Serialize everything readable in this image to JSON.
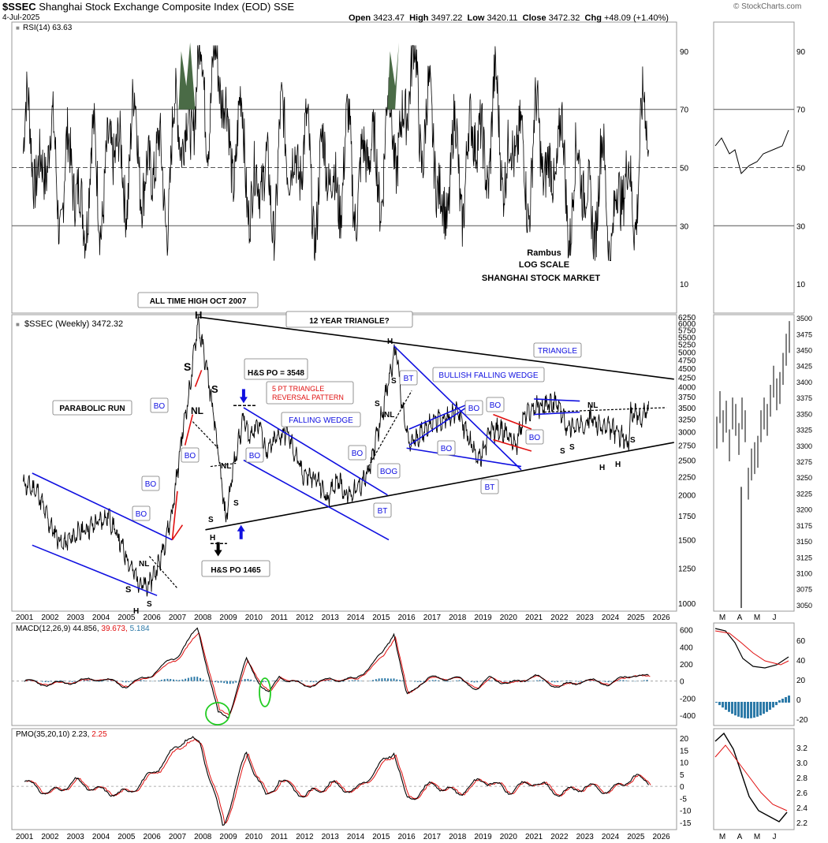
{
  "header": {
    "symbol": "$SSEC",
    "name": "Shanghai Stock Exchange Composite Index (EOD)",
    "exchange": "SSE",
    "date": "4-Jul-2025",
    "open_label": "Open",
    "open": "3423.47",
    "high_label": "High",
    "high": "3497.22",
    "low_label": "Low",
    "low": "3420.11",
    "close_label": "Close",
    "close": "3472.32",
    "chg_label": "Chg",
    "chg": "+48.09 (+1.40%)",
    "watermark": "© StockCharts.com"
  },
  "colors": {
    "price": "#000000",
    "trend": "#1010e0",
    "red": "#e01010",
    "macd_signal": "#e01010",
    "hist": "#2d7aa8",
    "ma": "#000000",
    "rsi_fill": "#4a6b46",
    "green": "#22cc22"
  },
  "chart_data": [
    {
      "type": "line",
      "panel": "rsi",
      "title": "RSI(14) 63.63",
      "y_ticks": [
        "90",
        "70",
        "50",
        "30",
        "10"
      ],
      "reference_lines": [
        70,
        50,
        30
      ],
      "ylim": [
        0,
        100
      ],
      "current": 63.63,
      "x": [
        "2001",
        "2002",
        "2003",
        "2004",
        "2005",
        "2006",
        "2007",
        "2008",
        "2009",
        "2010",
        "2011",
        "2012",
        "2013",
        "2014",
        "2015",
        "2016",
        "2017",
        "2018",
        "2019",
        "2020",
        "2021",
        "2022",
        "2023",
        "2024",
        "2025"
      ],
      "values": [
        55,
        48,
        40,
        52,
        55,
        45,
        68,
        82,
        55,
        40,
        58,
        45,
        48,
        50,
        58,
        80,
        40,
        55,
        62,
        52,
        55,
        45,
        40,
        36,
        57
      ]
    },
    {
      "type": "line",
      "panel": "price",
      "title": "$SSEC (Weekly) 3472.32",
      "scale": "log",
      "y_ticks": [
        "6250",
        "6000",
        "5750",
        "5500",
        "5250",
        "5000",
        "4750",
        "4500",
        "4250",
        "4000",
        "3750",
        "3500",
        "3250",
        "3000",
        "2750",
        "2500",
        "2250",
        "2000",
        "1750",
        "1500",
        "1250",
        "1000"
      ],
      "x_ticks": [
        "2001",
        "2002",
        "2003",
        "2004",
        "2005",
        "2006",
        "2007",
        "2008",
        "2009",
        "2010",
        "2011",
        "2012",
        "2013",
        "2014",
        "2015",
        "2016",
        "2017",
        "2018",
        "2019",
        "2020",
        "2021",
        "2022",
        "2023",
        "2024",
        "2025",
        "2026"
      ],
      "series": [
        {
          "x": [
            2000.95,
            2001.5,
            2002.0,
            2002.5,
            2003.0,
            2003.7,
            2004.3,
            2004.8,
            2005.2,
            2005.5,
            2005.8,
            2006.3,
            2006.8,
            2007.2,
            2007.5,
            2007.8,
            2008.2,
            2008.5,
            2008.9,
            2009.2,
            2009.6,
            2009.8,
            2010.2,
            2010.5,
            2010.9,
            2011.3,
            2011.9,
            2012.5,
            2012.9,
            2013.3,
            2013.6,
            2014.0,
            2014.5,
            2015.0,
            2015.4,
            2015.6,
            2015.8,
            2016.1,
            2016.5,
            2017.0,
            2017.5,
            2018.0,
            2018.5,
            2018.9,
            2019.3,
            2019.9,
            2020.3,
            2020.6,
            2021.0,
            2021.5,
            2021.9,
            2022.3,
            2022.8,
            2023.2,
            2023.6,
            2024.1,
            2024.5,
            2024.7,
            2024.8,
            2025.0,
            2025.2,
            2025.5
          ],
          "values": [
            2150,
            2050,
            1650,
            1450,
            1550,
            1650,
            1750,
            1450,
            1250,
            1150,
            1100,
            1300,
            1800,
            3000,
            4000,
            6100,
            4300,
            3000,
            1700,
            2400,
            3300,
            2900,
            3200,
            2600,
            2900,
            3000,
            2300,
            2200,
            1950,
            2250,
            2000,
            2050,
            2300,
            3300,
            4500,
            5150,
            3600,
            2750,
            2950,
            3200,
            3250,
            3450,
            2800,
            2500,
            3050,
            3000,
            2750,
            3300,
            3500,
            3550,
            3600,
            3100,
            3100,
            3300,
            3100,
            3050,
            2900,
            2750,
            3400,
            3350,
            3250,
            3472
          ]
        }
      ],
      "annotations": [
        "ALL TIME HIGH OCT 2007",
        "12 YEAR TRIANGLE?",
        "H&S PO = 3548",
        "H&S PO 1465",
        "5 PT TRIANGLE",
        "REVERSAL PATTERN",
        "FALLING WEDGE",
        "BULLISH FALLING WEDGE",
        "TRIANGLE",
        "PARABOLIC RUN",
        "Rambus",
        "LOG SCALE",
        "SHANGHAI STOCK MARKET",
        "BO",
        "BOG",
        "BT",
        "NL",
        "H",
        "S"
      ]
    },
    {
      "type": "line",
      "panel": "price-inset",
      "title": "",
      "x_ticks": [
        "M",
        "A",
        "M",
        "J"
      ],
      "y_ticks": [
        "3500",
        "3475",
        "3450",
        "3425",
        "3400",
        "3375",
        "3350",
        "3325",
        "3300",
        "3275",
        "3250",
        "3225",
        "3200",
        "3175",
        "3150",
        "3125",
        "3100",
        "3075",
        "3050"
      ],
      "ylim": [
        3040,
        3505
      ]
    },
    {
      "type": "line",
      "panel": "macd",
      "title": "MACD(12,26,9)",
      "macd": 44.856,
      "signal": 39.673,
      "histogram": 5.184,
      "y_ticks": [
        "600",
        "400",
        "200",
        "0",
        "-200",
        "-400"
      ],
      "inset_y_ticks": [
        "60",
        "40",
        "20",
        "0",
        "-20"
      ]
    },
    {
      "type": "line",
      "panel": "pmo",
      "title": "PMO(35,20,10)",
      "pmo": 2.23,
      "signal": 2.25,
      "y_ticks": [
        "20",
        "15",
        "10",
        "5",
        "0",
        "-5",
        "-10",
        "-15"
      ],
      "inset_y_ticks": [
        "3.2",
        "3.0",
        "2.8",
        "2.6",
        "2.4",
        "2.2"
      ]
    }
  ]
}
